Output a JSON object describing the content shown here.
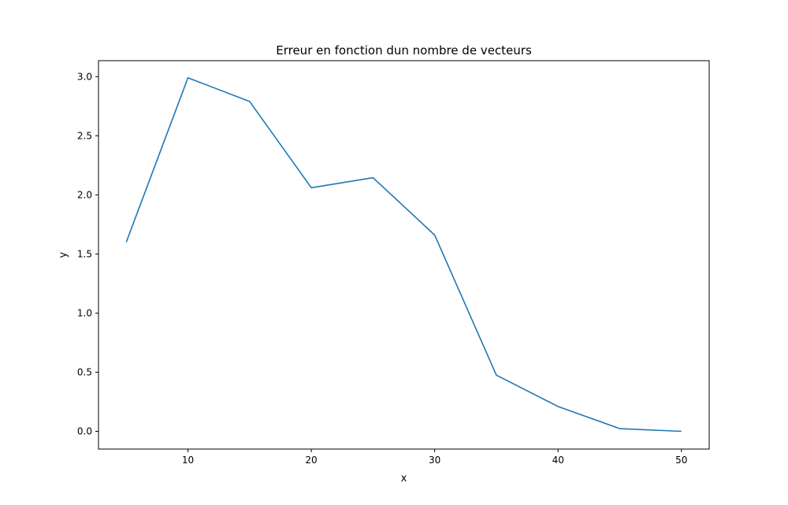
{
  "chart_data": {
    "type": "line",
    "title": "Erreur en fonction dun nombre de vecteurs",
    "xlabel": "x",
    "ylabel": "y",
    "xlim": [
      2.75,
      52.25
    ],
    "ylim": [
      -0.15,
      3.135
    ],
    "x_ticks": [
      10,
      20,
      30,
      40,
      50
    ],
    "x_tick_labels": [
      "10",
      "20",
      "30",
      "40",
      "50"
    ],
    "y_ticks": [
      0.0,
      0.5,
      1.0,
      1.5,
      2.0,
      2.5,
      3.0
    ],
    "y_tick_labels": [
      "0.0",
      "0.5",
      "1.0",
      "1.5",
      "2.0",
      "2.5",
      "3.0"
    ],
    "grid": false,
    "series": [
      {
        "color": "#1f77b4",
        "x": [
          5,
          10,
          15,
          20,
          25,
          30,
          35,
          40,
          45,
          50
        ],
        "y": [
          1.6,
          2.99,
          2.79,
          2.06,
          2.145,
          1.66,
          0.475,
          0.21,
          0.023,
          0.0
        ]
      }
    ]
  }
}
